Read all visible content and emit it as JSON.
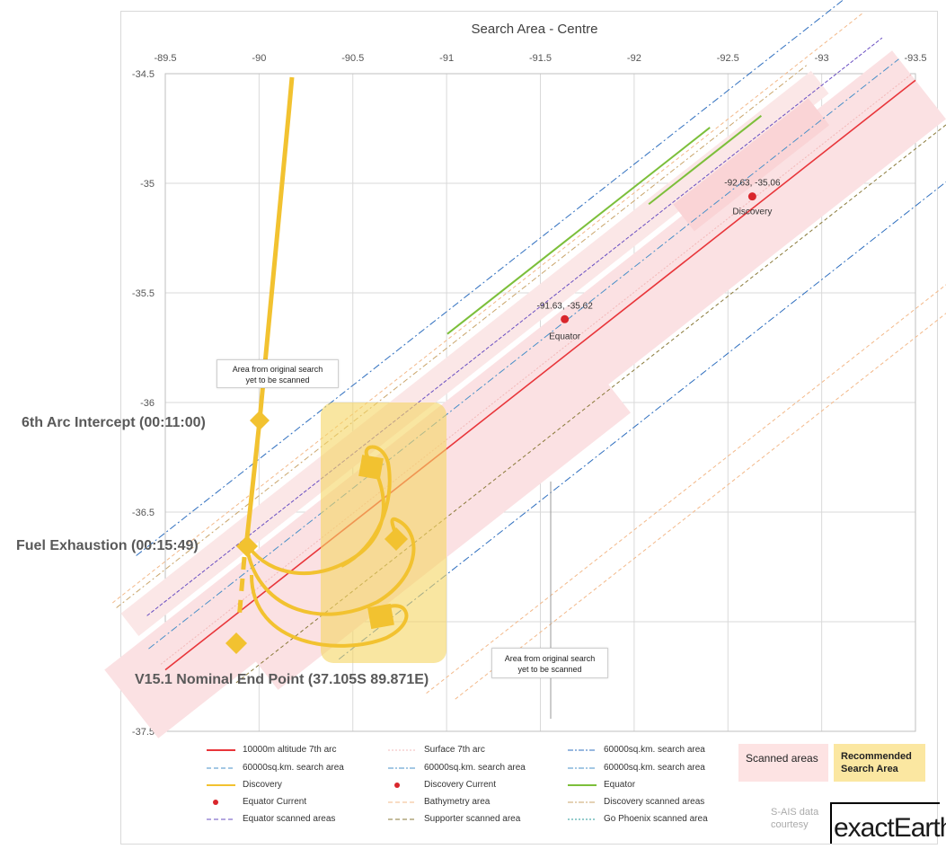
{
  "chart_data": {
    "type": "scatter",
    "title": "Search Area - Centre",
    "x_axis": {
      "range": [
        -89.5,
        -93.5
      ],
      "reversed": true,
      "position": "top",
      "ticks": [
        "-89.5",
        "-90",
        "-90.5",
        "-91",
        "-91.5",
        "-92",
        "-92.5",
        "-93",
        "-93.5"
      ]
    },
    "y_axis": {
      "range": [
        -37.5,
        -34.5
      ],
      "ticks": [
        "-34.5",
        "-35",
        "-35.5",
        "-36",
        "-36.5",
        "-37",
        "-37.5"
      ]
    },
    "grid": true,
    "legend_position": "bottom",
    "points": [
      {
        "name": "Discovery Current",
        "x": -92.63,
        "y": -35.06,
        "label": "-92.63, -35.06",
        "caption": "Discovery"
      },
      {
        "name": "Equator Current",
        "x": -91.63,
        "y": -35.62,
        "label": "-91.63, -35.62",
        "caption": "Equator"
      }
    ],
    "arc_7th": {
      "name": "10000m altitude 7th arc",
      "from": [
        -89.5,
        -37.22
      ],
      "to": [
        -93.5,
        -34.53
      ]
    },
    "trajectory": {
      "name": "Discovery"
    },
    "annotations": [
      {
        "text": "6th Arc Intercept (00:11:00)"
      },
      {
        "text": "Fuel Exhaustion (00:15:49)"
      },
      {
        "text": "V15.1 Nominal End Point (37.105S 89.871E)"
      }
    ],
    "notes": [
      {
        "line1": "Area from original search",
        "line2": "yet to be scanned"
      },
      {
        "line1": "Area from original search",
        "line2": "yet to be scanned"
      }
    ],
    "legend": [
      {
        "label": "10000m altitude 7th arc",
        "color": "#e8353a",
        "style": "solid"
      },
      {
        "label": "Surface 7th arc",
        "color": "#f2b8b8",
        "style": "dotted"
      },
      {
        "label": "60000sq.km. search area",
        "color": "#2f6fbf",
        "style": "dashdot"
      },
      {
        "label": "60000sq.km. search area",
        "color": "#4a90c8",
        "style": "dashed"
      },
      {
        "label": "60000sq.km. search area",
        "color": "#4a90c8",
        "style": "dashdot"
      },
      {
        "label": "60000sq.km. search area",
        "color": "#4a90c8",
        "style": "dashdot"
      },
      {
        "label": "Discovery",
        "color": "#f2c230",
        "style": "solid"
      },
      {
        "label": "Discovery Current",
        "color": "#d9262c",
        "style": "dot"
      },
      {
        "label": "Equator",
        "color": "#7cbf3a",
        "style": "solid"
      },
      {
        "label": "Equator Current",
        "color": "#d9262c",
        "style": "dot"
      },
      {
        "label": "Bathymetry area",
        "color": "#f3b98a",
        "style": "dashed"
      },
      {
        "label": "Discovery scanned areas",
        "color": "#c9a56b",
        "style": "dashdot"
      },
      {
        "label": "Equator scanned areas",
        "color": "#6a4fc2",
        "style": "dashed"
      },
      {
        "label": "Supporter scanned area",
        "color": "#8a7a3a",
        "style": "dashed"
      },
      {
        "label": "Go Phoenix scanned area",
        "color": "#2a9a9a",
        "style": "dotted"
      }
    ],
    "boxes": {
      "scanned": "Scanned areas",
      "recommended": "Recommended Search Area"
    }
  },
  "credit": {
    "line1": "S-AIS data",
    "line2": "courtesy",
    "logo": "exactEarth"
  },
  "colors": {
    "scanned": "#fde3e3",
    "recommended": "#fbe7a1",
    "trajectory": "#f2c230",
    "arc": "#e8353a"
  }
}
